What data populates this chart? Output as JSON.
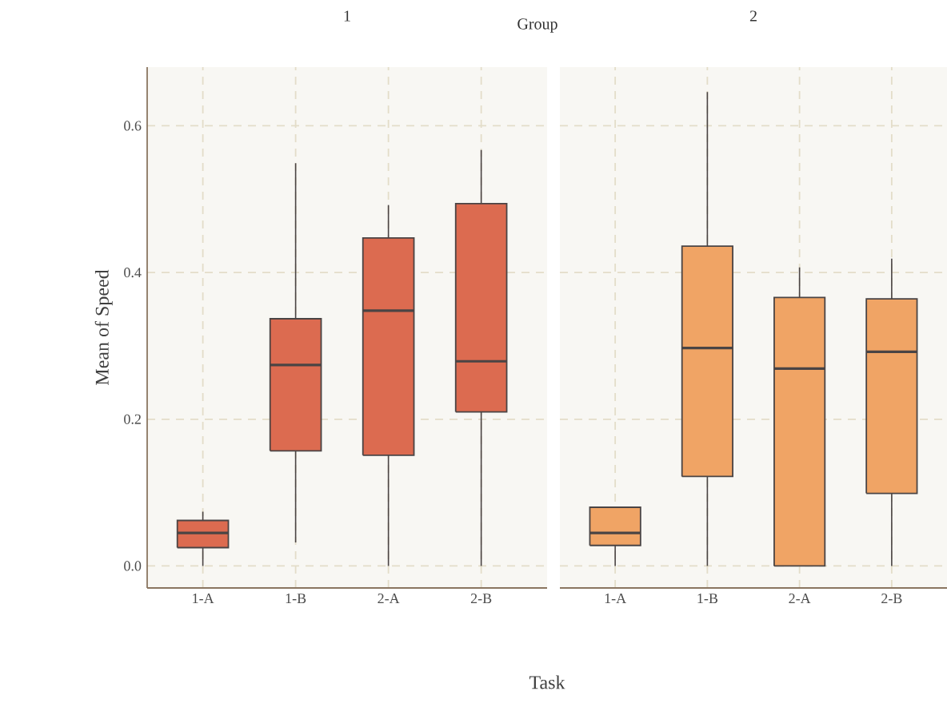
{
  "chart_data": [
    {
      "type": "box",
      "title": "1",
      "xlabel": "Task",
      "ylabel": "Mean of Speed",
      "annotations": [
        "Group"
      ],
      "categories": [
        "1-A",
        "1-B",
        "2-A",
        "2-B"
      ],
      "ylim": [
        -0.03,
        0.68
      ],
      "yticks": [
        {
          "value": 0,
          "label": "0.0"
        },
        0.2,
        0.4,
        0.6
      ],
      "grid": true,
      "series": [
        {
          "color": "#dc6b50",
          "boxes": [
            {
              "low": 0,
              "q1": 0.025,
              "median": 0.045,
              "q3": 0.062,
              "high": 0.074
            },
            {
              "low": 0.032,
              "q1": 0.157,
              "median": 0.274,
              "q3": 0.337,
              "high": 0.549
            },
            {
              "low": 0,
              "q1": 0.151,
              "median": 0.348,
              "q3": 0.447,
              "high": 0.492
            },
            {
              "low": 0,
              "q1": 0.21,
              "median": 0.279,
              "q3": 0.494,
              "high": 0.567
            }
          ]
        }
      ]
    },
    {
      "type": "box",
      "title": "2",
      "categories": [
        "1-A",
        "1-B",
        "2-A",
        "2-B"
      ],
      "ylim": [
        -0.03,
        0.68
      ],
      "yticks": [
        0,
        0.2,
        0.4,
        0.6
      ],
      "tick_labels": "x",
      "grid": true,
      "series": [
        {
          "color": "#f0a465",
          "boxes": [
            {
              "low": 0,
              "q1": 0.028,
              "median": 0.045,
              "q3": 0.08,
              "high": 0.08
            },
            {
              "low": 0,
              "q1": 0.122,
              "median": 0.297,
              "q3": 0.436,
              "high": 0.646
            },
            {
              "low": 0,
              "q1": 0,
              "median": 0.269,
              "q3": 0.366,
              "high": 0.407
            },
            {
              "low": 0,
              "q1": 0.099,
              "median": 0.292,
              "q3": 0.364,
              "high": 0.419
            }
          ]
        }
      ]
    }
  ]
}
